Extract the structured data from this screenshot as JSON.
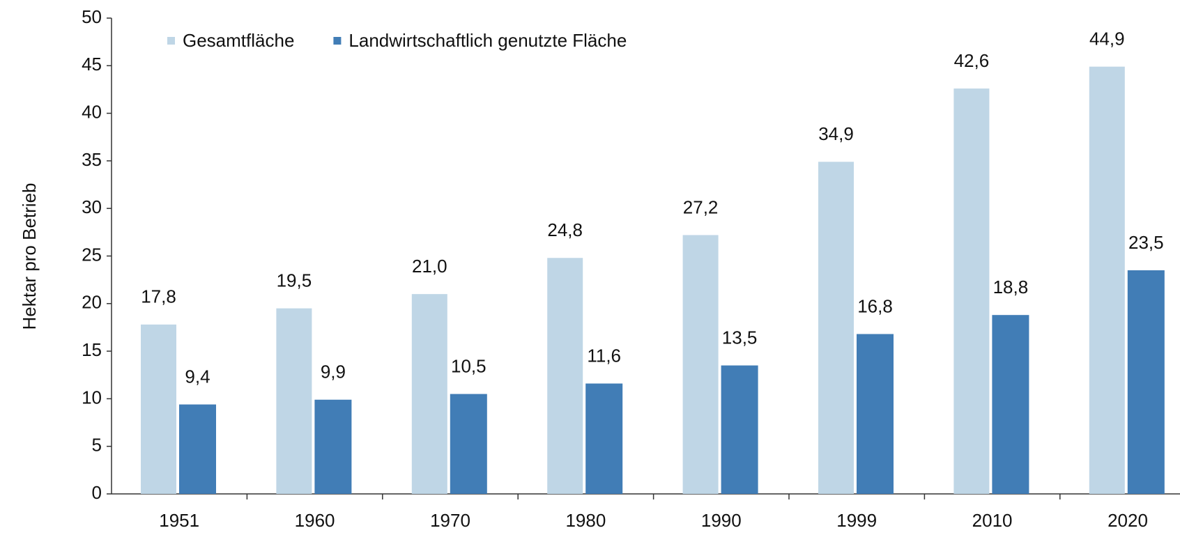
{
  "chart_data": {
    "type": "bar",
    "y_axis_label": "Hektar pro Betrieb",
    "categories": [
      "1951",
      "1960",
      "1970",
      "1980",
      "1990",
      "1999",
      "2010",
      "2020"
    ],
    "series": [
      {
        "name": "Gesamtfläche",
        "color": "#bfd6e6",
        "values": [
          17.8,
          19.5,
          21.0,
          24.8,
          27.2,
          34.9,
          42.6,
          44.9
        ],
        "value_labels": [
          "17,8",
          "19,5",
          "21,0",
          "24,8",
          "27,2",
          "34,9",
          "42,6",
          "44,9"
        ]
      },
      {
        "name": "Landwirtschaftlich genutzte Fläche",
        "color": "#417db6",
        "values": [
          9.4,
          9.9,
          10.5,
          11.6,
          13.5,
          16.8,
          18.8,
          23.5
        ],
        "value_labels": [
          "9,4",
          "9,9",
          "10,5",
          "11,6",
          "13,5",
          "16,8",
          "18,8",
          "23,5"
        ]
      }
    ],
    "ylim": [
      0,
      50
    ],
    "yticks": [
      0,
      5,
      10,
      15,
      20,
      25,
      30,
      35,
      40,
      45,
      50
    ],
    "legend": "top-left"
  }
}
